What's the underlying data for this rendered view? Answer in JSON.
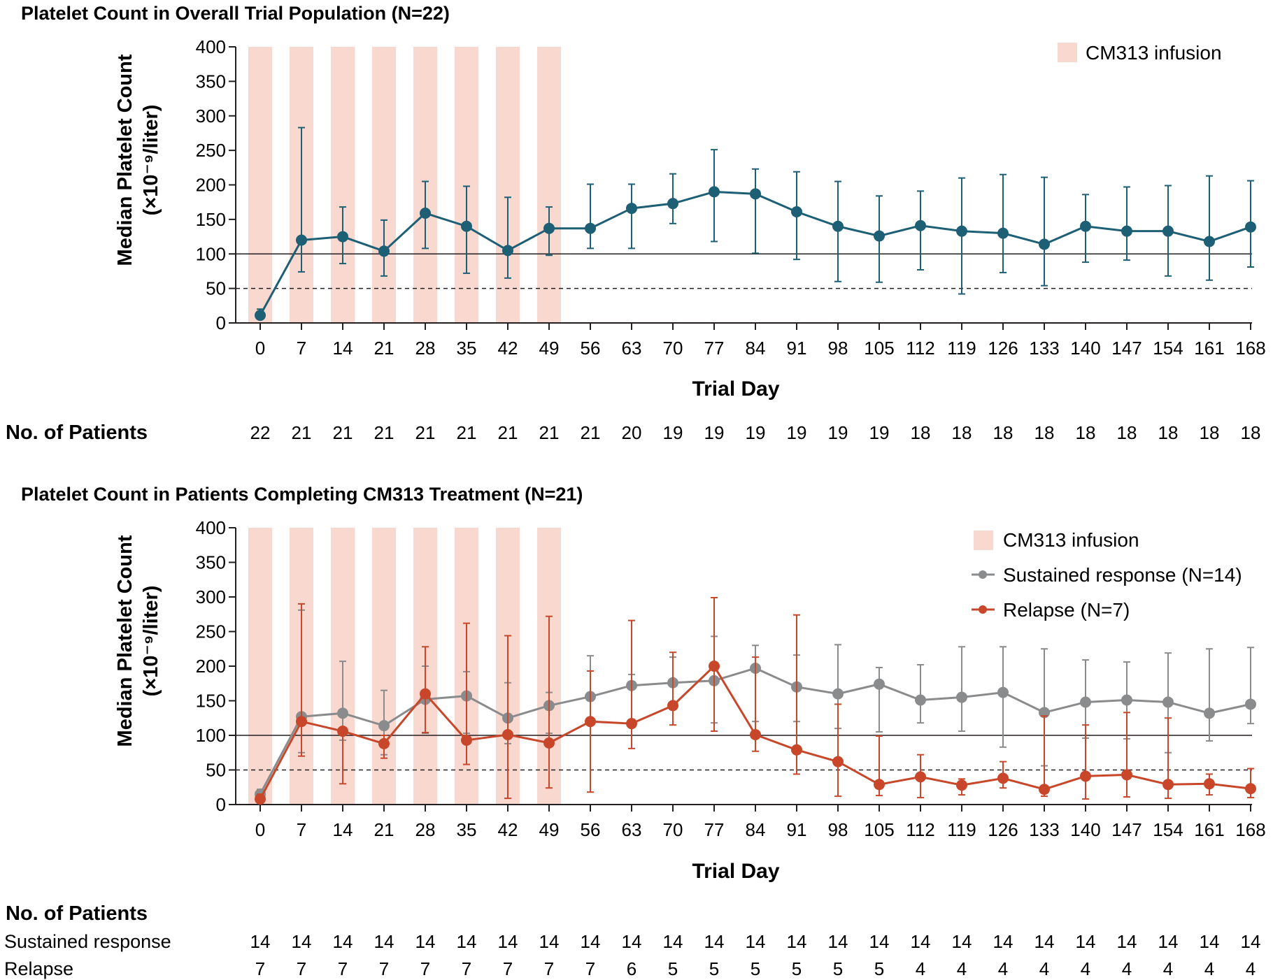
{
  "panels": [
    {
      "title": "Platelet Count in Overall Trial Population (N=22)",
      "ylabel": "Median Platelet Count",
      "ylabel_units": "(×10⁻⁹/liter)",
      "xlabel": "Trial Day",
      "patients_title": "No. of Patients",
      "legend_infusion": "CM313 infusion"
    },
    {
      "title": "Platelet Count in Patients Completing CM313 Treatment (N=21)",
      "ylabel": "Median Platelet Count",
      "ylabel_units": "(×10⁻⁹/liter)",
      "xlabel": "Trial Day",
      "patients_title": "No. of Patients",
      "legend_infusion": "CM313 infusion",
      "legend_sustained": "Sustained response (N=14)",
      "legend_relapse": "Relapse (N=7)",
      "row_sustained": "Sustained response",
      "row_relapse": "Relapse"
    }
  ],
  "colors": {
    "overall": "#1d5f74",
    "sustained": "#8a8b8d",
    "relapse": "#c8472a",
    "infusion": "#f8d8cf",
    "text": "#231f20"
  },
  "chart_data": [
    {
      "type": "line",
      "title": "Platelet Count in Overall Trial Population (N=22)",
      "xlabel": "Trial Day",
      "ylabel": "Median Platelet Count (×10⁻⁹/liter)",
      "x": [
        0,
        7,
        14,
        21,
        28,
        35,
        42,
        49,
        56,
        63,
        70,
        77,
        84,
        91,
        98,
        105,
        112,
        119,
        126,
        133,
        140,
        147,
        154,
        161,
        168
      ],
      "ylim": [
        0,
        400
      ],
      "yticks": [
        0,
        50,
        100,
        150,
        200,
        250,
        300,
        350,
        400
      ],
      "reference_lines": [
        {
          "y": 100,
          "style": "solid"
        },
        {
          "y": 50,
          "style": "dashed"
        }
      ],
      "infusion_days": [
        0,
        7,
        14,
        21,
        28,
        35,
        42,
        49
      ],
      "legend": [
        "CM313 infusion"
      ],
      "series": [
        {
          "name": "Overall",
          "color": "#1d5f74",
          "values": [
            11,
            120,
            125,
            104,
            159,
            140,
            105,
            137,
            137,
            166,
            173,
            190,
            187,
            161,
            140,
            126,
            141,
            133,
            130,
            114,
            140,
            133,
            133,
            118,
            139
          ],
          "err_low": [
            8,
            74,
            86,
            68,
            108,
            72,
            65,
            98,
            108,
            108,
            144,
            118,
            101,
            92,
            60,
            59,
            77,
            42,
            73,
            54,
            88,
            91,
            68,
            62,
            81
          ],
          "err_high": [
            20,
            283,
            168,
            149,
            205,
            198,
            182,
            168,
            201,
            201,
            216,
            251,
            223,
            219,
            205,
            184,
            191,
            210,
            215,
            211,
            186,
            197,
            199,
            213,
            206
          ]
        }
      ],
      "patients": [
        22,
        21,
        21,
        21,
        21,
        21,
        21,
        21,
        21,
        20,
        19,
        19,
        19,
        19,
        19,
        19,
        18,
        18,
        18,
        18,
        18,
        18,
        18,
        18,
        18
      ]
    },
    {
      "type": "line",
      "title": "Platelet Count in Patients Completing CM313 Treatment (N=21)",
      "xlabel": "Trial Day",
      "ylabel": "Median Platelet Count (×10⁻⁹/liter)",
      "x": [
        0,
        7,
        14,
        21,
        28,
        35,
        42,
        49,
        56,
        63,
        70,
        77,
        84,
        91,
        98,
        105,
        112,
        119,
        126,
        133,
        140,
        147,
        154,
        161,
        168
      ],
      "ylim": [
        0,
        400
      ],
      "yticks": [
        0,
        50,
        100,
        150,
        200,
        250,
        300,
        350,
        400
      ],
      "reference_lines": [
        {
          "y": 100,
          "style": "solid"
        },
        {
          "y": 50,
          "style": "dashed"
        }
      ],
      "infusion_days": [
        0,
        7,
        14,
        21,
        28,
        35,
        42,
        49
      ],
      "legend": [
        "CM313 infusion",
        "Sustained response (N=14)",
        "Relapse (N=7)"
      ],
      "series": [
        {
          "name": "Sustained response (N=14)",
          "color": "#8a8b8d",
          "values": [
            15,
            127,
            132,
            114,
            152,
            157,
            125,
            143,
            156,
            172,
            176,
            179,
            197,
            170,
            160,
            174,
            151,
            155,
            162,
            133,
            148,
            151,
            148,
            132,
            145
          ],
          "err_low": [
            8,
            75,
            93,
            72,
            103,
            103,
            88,
            103,
            118,
            123,
            145,
            118,
            120,
            120,
            110,
            105,
            118,
            106,
            83,
            56,
            96,
            95,
            75,
            92,
            117
          ],
          "err_high": [
            22,
            281,
            207,
            165,
            200,
            192,
            176,
            162,
            215,
            188,
            213,
            243,
            230,
            216,
            231,
            198,
            202,
            228,
            228,
            225,
            209,
            206,
            219,
            225,
            227
          ]
        },
        {
          "name": "Relapse (N=7)",
          "color": "#c8472a",
          "values": [
            8,
            120,
            106,
            88,
            160,
            93,
            101,
            89,
            120,
            117,
            143,
            200,
            101,
            79,
            62,
            29,
            40,
            28,
            38,
            22,
            41,
            43,
            29,
            30,
            23
          ],
          "err_low": [
            3,
            70,
            30,
            67,
            104,
            58,
            9,
            24,
            18,
            81,
            115,
            106,
            77,
            44,
            12,
            13,
            10,
            14,
            24,
            12,
            8,
            11,
            9,
            14,
            10
          ],
          "err_high": [
            15,
            290,
            110,
            100,
            228,
            262,
            244,
            272,
            193,
            266,
            220,
            299,
            213,
            274,
            145,
            99,
            72,
            37,
            62,
            128,
            115,
            133,
            125,
            44,
            52
          ]
        }
      ],
      "patients": {
        "sustained": [
          14,
          14,
          14,
          14,
          14,
          14,
          14,
          14,
          14,
          14,
          14,
          14,
          14,
          14,
          14,
          14,
          14,
          14,
          14,
          14,
          14,
          14,
          14,
          14,
          14
        ],
        "relapse": [
          7,
          7,
          7,
          7,
          7,
          7,
          7,
          7,
          7,
          6,
          5,
          5,
          5,
          5,
          5,
          5,
          4,
          4,
          4,
          4,
          4,
          4,
          4,
          4,
          4
        ]
      }
    }
  ]
}
